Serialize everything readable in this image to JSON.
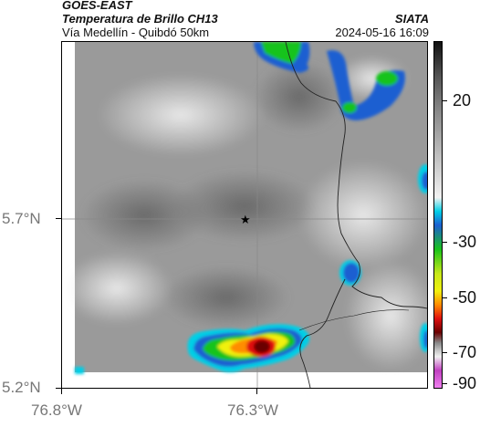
{
  "header": {
    "satellite": "GOES-EAST",
    "product": "Temperatura de Brillo CH13",
    "org": "SIATA",
    "region": "Vía Medellín - Quibdó 50km",
    "timestamp": "2024-05-16 16:09"
  },
  "map": {
    "lat_labels": [
      "5.7°N",
      "5.2°N"
    ],
    "lon_labels": [
      "76.8°W",
      "76.3°W"
    ],
    "marker_icon": "star-icon"
  },
  "colorbar": {
    "tick_labels": [
      "20",
      "-30",
      "-50",
      "-70",
      "-90"
    ],
    "colors": {
      "cyan": "#00cfe6",
      "blue": "#1d5fd1",
      "green": "#19c31a",
      "yellow": "#f1f10f",
      "orange": "#ff8c00",
      "red": "#e01010",
      "darkred": "#6a0000",
      "magenta": "#c040c0"
    }
  }
}
